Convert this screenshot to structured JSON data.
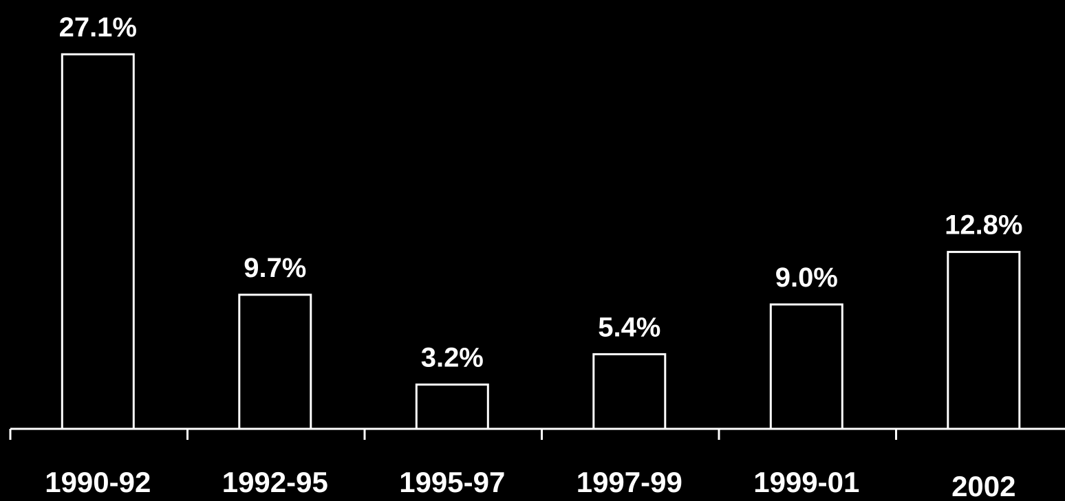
{
  "chart_data": {
    "type": "bar",
    "categories": [
      "1990-92",
      "1992-95",
      "1995-97",
      "1997-99",
      "1999-01",
      "2002"
    ],
    "values": [
      27.1,
      9.7,
      3.2,
      5.4,
      9.0,
      12.8
    ],
    "value_labels": [
      "27.1%",
      "9.7%",
      "3.2%",
      "5.4%",
      "9.0%",
      "12.8%"
    ],
    "ylim": [
      0,
      27.1
    ],
    "grid": false,
    "colors": {
      "background": "#000000",
      "bar_outline": "#ffffff",
      "text": "#ffffff"
    }
  }
}
